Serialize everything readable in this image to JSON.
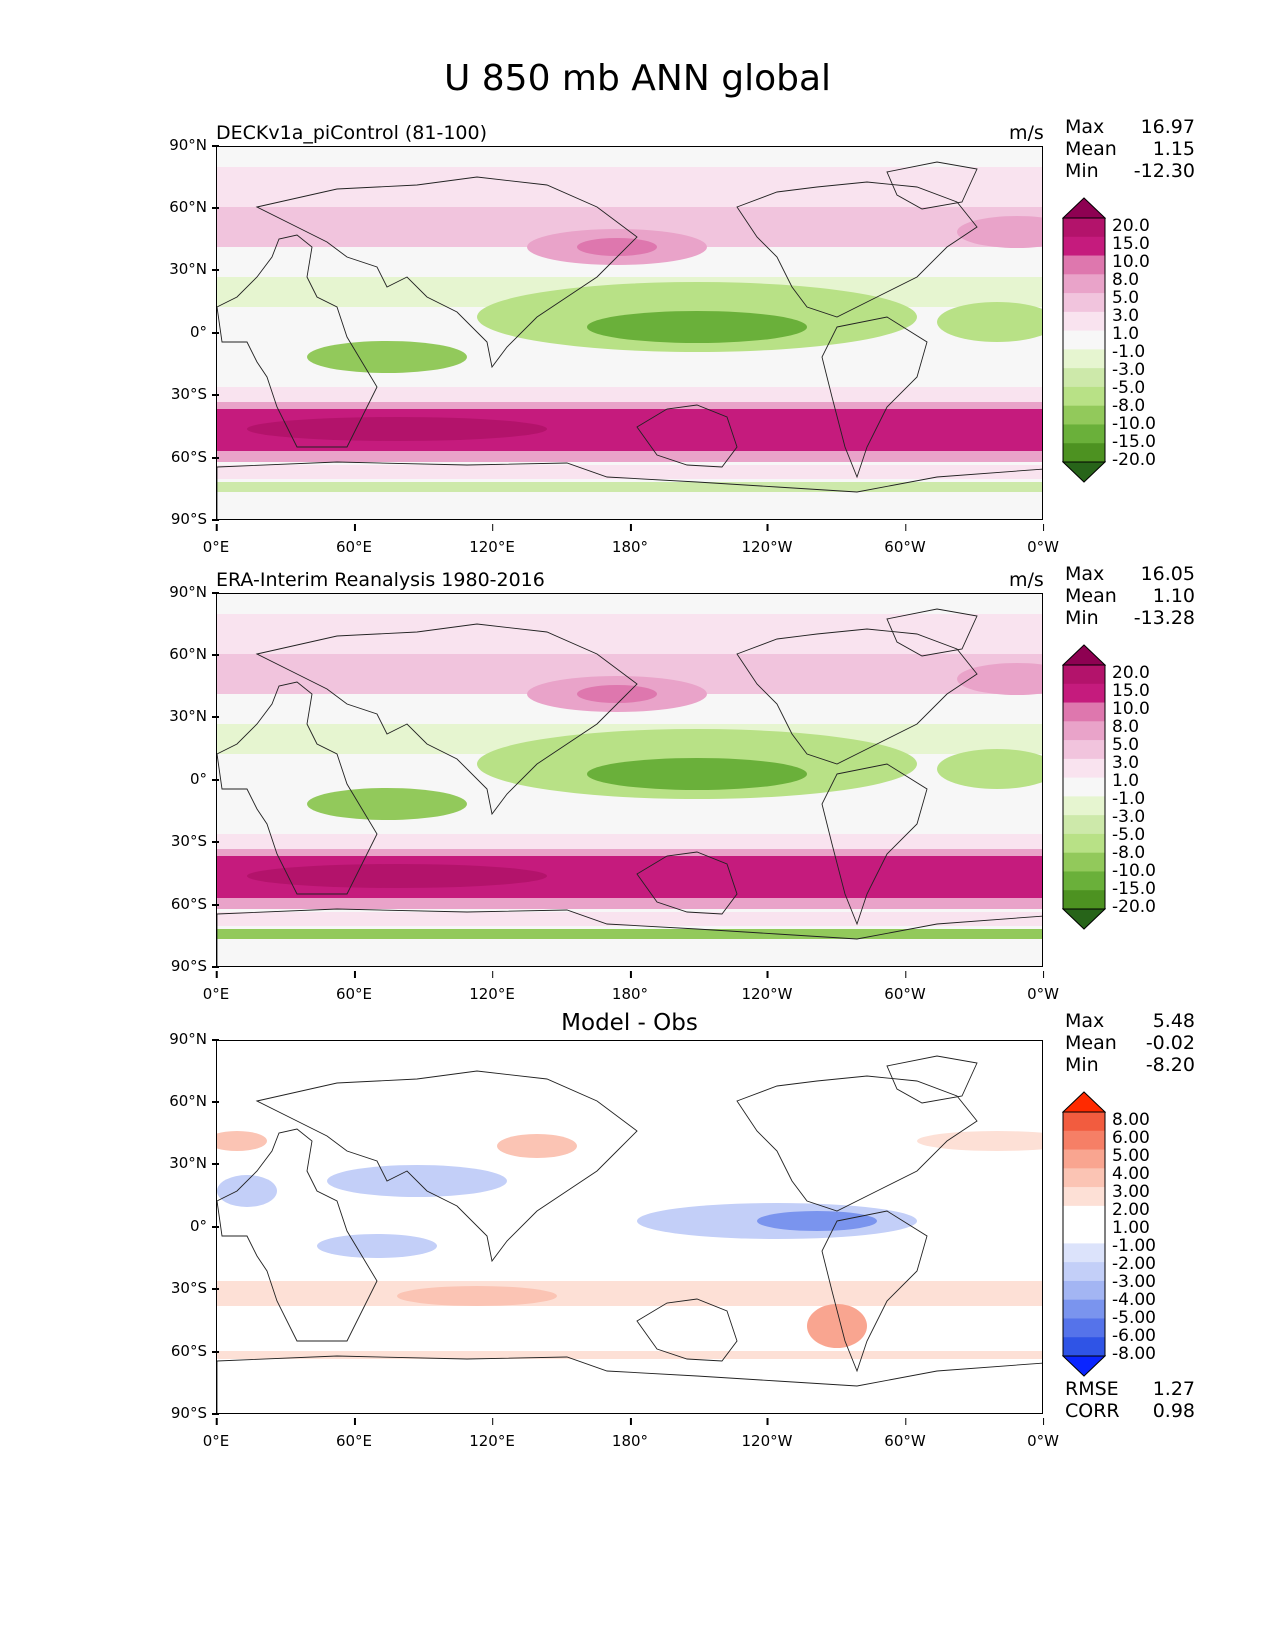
{
  "figure_title": "U 850 mb ANN global",
  "panels": [
    {
      "title": "DECKv1a_piControl (81-100)",
      "units": "m/s",
      "stats": {
        "max_label": "Max",
        "max": "16.97",
        "mean_label": "Mean",
        "mean": "1.15",
        "min_label": "Min",
        "min": "-12.30"
      },
      "colorbar": {
        "labels": [
          "20.0",
          "15.0",
          "10.0",
          "8.0",
          "5.0",
          "3.0",
          "1.0",
          "-1.0",
          "-3.0",
          "-5.0",
          "-8.0",
          "-10.0",
          "-15.0",
          "-20.0"
        ]
      }
    },
    {
      "title": "ERA-Interim Reanalysis 1980-2016",
      "units": "m/s",
      "stats": {
        "max_label": "Max",
        "max": "16.05",
        "mean_label": "Mean",
        "mean": "1.10",
        "min_label": "Min",
        "min": "-13.28"
      },
      "colorbar": {
        "labels": [
          "20.0",
          "15.0",
          "10.0",
          "8.0",
          "5.0",
          "3.0",
          "1.0",
          "-1.0",
          "-3.0",
          "-5.0",
          "-8.0",
          "-10.0",
          "-15.0",
          "-20.0"
        ]
      }
    },
    {
      "title": "Model - Obs",
      "units": "",
      "stats": {
        "max_label": "Max",
        "max": "5.48",
        "mean_label": "Mean",
        "mean": "-0.02",
        "min_label": "Min",
        "min": "-8.20"
      },
      "colorbar": {
        "labels": [
          "8.00",
          "6.00",
          "5.00",
          "4.00",
          "3.00",
          "2.00",
          "1.00",
          "-1.00",
          "-2.00",
          "-3.00",
          "-4.00",
          "-5.00",
          "-6.00",
          "-8.00"
        ]
      },
      "metrics": {
        "rmse_label": "RMSE",
        "rmse": "1.27",
        "corr_label": "CORR",
        "corr": "0.98"
      }
    }
  ],
  "axes": {
    "lat_ticks": [
      "90°N",
      "60°N",
      "30°N",
      "0°",
      "30°S",
      "60°S",
      "90°S"
    ],
    "lon_ticks": [
      "0°E",
      "60°E",
      "120°E",
      "180°",
      "120°W",
      "60°W",
      "0°W"
    ]
  },
  "colors": {
    "diverging_pink_green": [
      "#8e0152",
      "#b3136b",
      "#c51b7d",
      "#de77ae",
      "#e9a3c9",
      "#f1c4dd",
      "#f9e3ef",
      "#f7f7f7",
      "#e6f5d0",
      "#cde9aa",
      "#b8e186",
      "#92c95b",
      "#6ab03a",
      "#4d9221",
      "#276419"
    ],
    "diverging_red_blue": [
      "#ff2a00",
      "#f25c3f",
      "#f67f66",
      "#f9a590",
      "#fbc4b4",
      "#fde0d6",
      "#ffffff",
      "#ffffff",
      "#dce3fb",
      "#c3cff8",
      "#a3b5f3",
      "#7a94ee",
      "#5573ea",
      "#2f54e6",
      "#0a25ff"
    ]
  }
}
